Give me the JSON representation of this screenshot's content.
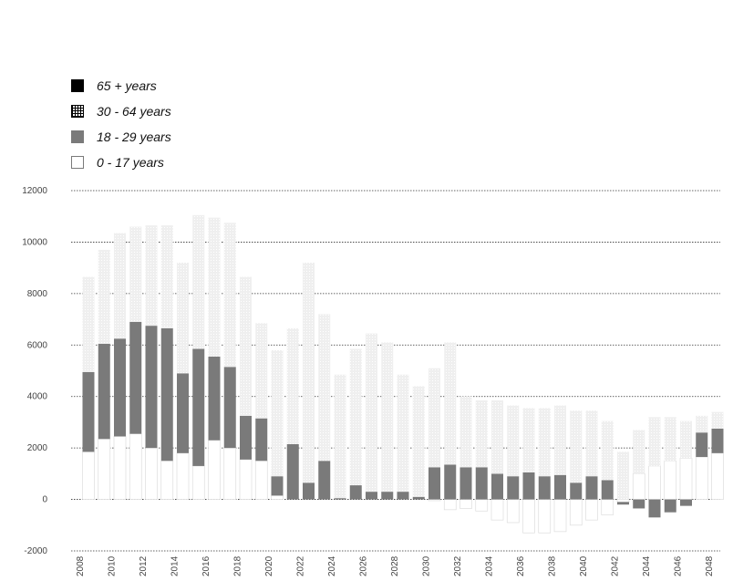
{
  "legend": [
    {
      "label": "65 + years",
      "key": "s65"
    },
    {
      "label": "30 - 64 years",
      "key": "s30"
    },
    {
      "label": "18 - 29 years",
      "key": "s18"
    },
    {
      "label": "0 - 17 years",
      "key": "s0"
    }
  ],
  "colors": {
    "age_18_29": "#7a7a7a",
    "age_30_64": "#efefef",
    "age_0_17_border": "#dddddd",
    "grid": "#333333"
  },
  "chart_data": {
    "type": "bar",
    "stacked": true,
    "ylim": [
      -2000,
      12000
    ],
    "yticks": [
      -2000,
      0,
      2000,
      4000,
      6000,
      8000,
      10000,
      12000
    ],
    "xtick_labels": [
      "2008",
      "2010",
      "2012",
      "2014",
      "2016",
      "2018",
      "2020",
      "2022",
      "2024",
      "2026",
      "2028",
      "2030",
      "2032",
      "2034",
      "2036",
      "2038",
      "2040",
      "2042",
      "2044",
      "2046",
      "2048"
    ],
    "grid": true,
    "categories": [
      "2008",
      "2009",
      "2010",
      "2011",
      "2012",
      "2013",
      "2014",
      "2015",
      "2016",
      "2017",
      "2018",
      "2019",
      "2020",
      "2021",
      "2022",
      "2023",
      "2024",
      "2025",
      "2026",
      "2027",
      "2028",
      "2029",
      "2030",
      "2031",
      "2032",
      "2033",
      "2034",
      "2035",
      "2036",
      "2037",
      "2038",
      "2039",
      "2040",
      "2041",
      "2042",
      "2043",
      "2044",
      "2045",
      "2046",
      "2047",
      "2048"
    ],
    "series": [
      {
        "name": "0 - 17 years",
        "values": [
          1850,
          2350,
          2450,
          2550,
          2000,
          1500,
          1800,
          1300,
          2300,
          2000,
          1550,
          1500,
          150,
          0,
          0,
          0,
          0,
          0,
          0,
          0,
          0,
          0,
          -50,
          -400,
          -350,
          -450,
          -800,
          -900,
          -1300,
          -1300,
          -1250,
          -1000,
          -800,
          -600,
          -100,
          1000,
          1300,
          1500,
          1600,
          1650,
          1800
        ]
      },
      {
        "name": "18 - 29 years",
        "values": [
          3100,
          3700,
          3800,
          4350,
          4750,
          5150,
          3100,
          4550,
          3250,
          3150,
          1700,
          1650,
          750,
          2150,
          650,
          1500,
          50,
          550,
          300,
          300,
          300,
          100,
          1250,
          1350,
          1250,
          1250,
          1000,
          900,
          1050,
          900,
          950,
          650,
          900,
          750,
          -100,
          -350,
          -700,
          -500,
          -250,
          950,
          950
        ]
      },
      {
        "name": "30 - 64 years",
        "values": [
          3700,
          3650,
          4100,
          3700,
          3900,
          4000,
          4300,
          5200,
          5400,
          5600,
          5400,
          3700,
          4900,
          4500,
          8550,
          5700,
          4800,
          5300,
          6150,
          5800,
          4550,
          4300,
          3850,
          4750,
          2750,
          2600,
          2850,
          2750,
          2500,
          2650,
          2700,
          2800,
          2550,
          2300,
          1850,
          1700,
          1900,
          1700,
          1450,
          650,
          650
        ]
      }
    ]
  }
}
